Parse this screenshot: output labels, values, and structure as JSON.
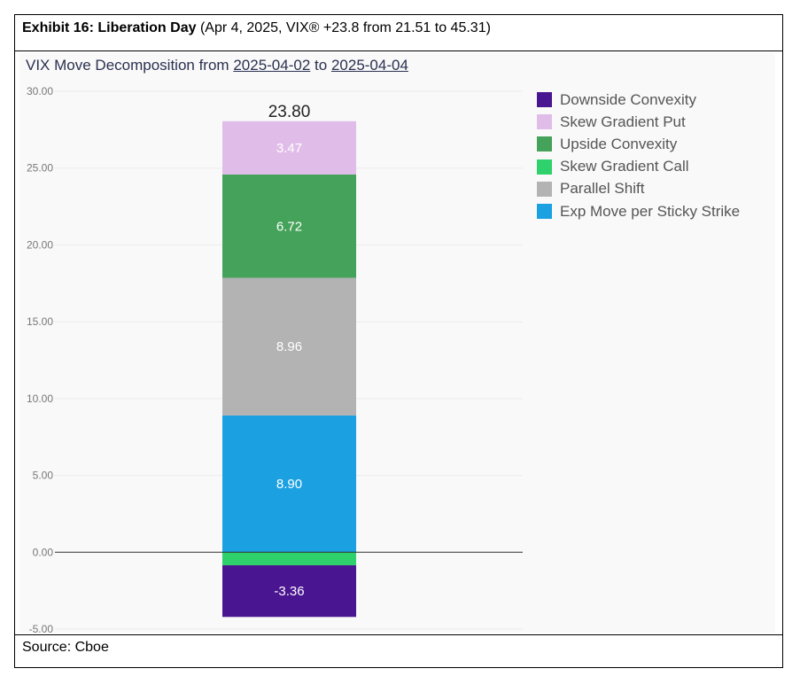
{
  "exhibit": {
    "bold": "Exhibit 16: Liberation Day",
    "rest": "(Apr 4, 2025, VIX® +23.8 from 21.51 to 45.31)"
  },
  "source": "Source: Cboe",
  "chart_data": {
    "type": "bar",
    "stacked": true,
    "title_prefix": "VIX Move Decomposition from",
    "date_start": "2025-04-02",
    "title_mid": "to",
    "date_end": "2025-04-04",
    "ylim": [
      -5,
      30
    ],
    "y_ticks": [
      "30.00",
      "25.00",
      "20.00",
      "15.00",
      "10.00",
      "5.00",
      "0.00",
      "-5.00"
    ],
    "total_label": "23.80",
    "legend_position": "right",
    "series": [
      {
        "name": "Exp Move per Sticky Strike",
        "value": 8.9,
        "label": "8.90",
        "color": "#1ba0e2"
      },
      {
        "name": "Parallel Shift",
        "value": 8.96,
        "label": "8.96",
        "color": "#b3b3b3"
      },
      {
        "name": "Upside Convexity",
        "value": 6.72,
        "label": "6.72",
        "color": "#45a25a"
      },
      {
        "name": "Skew Gradient Put",
        "value": 3.47,
        "label": "3.47",
        "color": "#e0bde9"
      },
      {
        "name": "Skew Gradient Call",
        "value": -0.85,
        "label": "",
        "color": "#2ed16c"
      },
      {
        "name": "Downside Convexity",
        "value": -3.36,
        "label": "-3.36",
        "color": "#4a1590"
      }
    ],
    "legend_order": [
      "Downside Convexity",
      "Skew Gradient Put",
      "Upside Convexity",
      "Skew Gradient Call",
      "Parallel Shift",
      "Exp Move per Sticky Strike"
    ]
  }
}
